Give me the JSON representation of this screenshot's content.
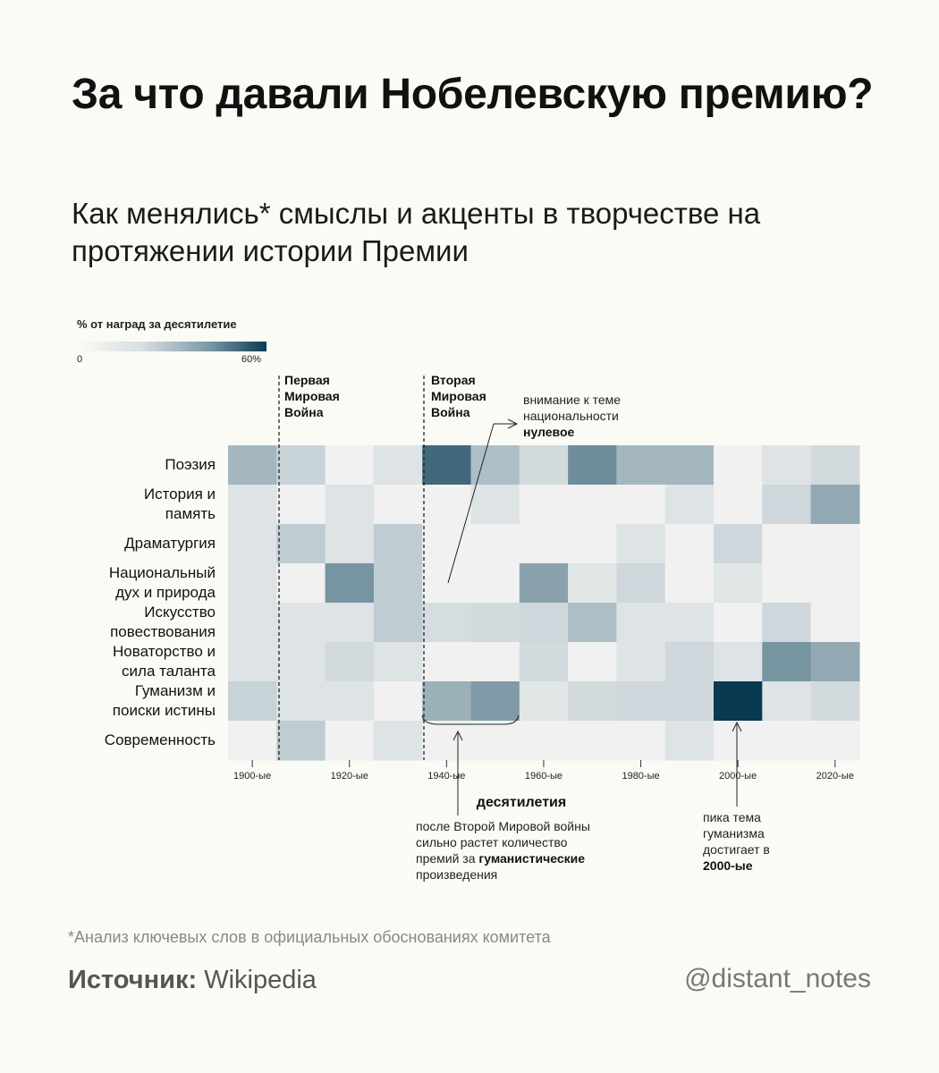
{
  "header": {
    "title": "За что давали Нобелевскую премию?",
    "subtitle": "Как менялись* смыслы и акценты в творчестве на протяжении истории Премии"
  },
  "legend": {
    "label": "% от наград за десятилетие",
    "min_label": "0",
    "max_label": "60%",
    "color_low": "#fbfbf6",
    "color_high": "#0a3a52"
  },
  "events": {
    "ww1": {
      "label": "Первая\nМировая\nВойна"
    },
    "ww2": {
      "label": "Вторая\nМировая\nВойна"
    }
  },
  "annotations": {
    "nationality": {
      "text": "внимание к теме национальности",
      "bold": "нулевое"
    },
    "humanism_growth": {
      "text": "после Второй Мировой войны сильно растет количество премий за",
      "bold": "гуманистические",
      "tail": "произведения"
    },
    "humanism_peak": {
      "text": "пика тема гуманизма достигает в",
      "bold": "2000-ые"
    }
  },
  "chart_data": {
    "type": "heatmap",
    "xlabel": "десятилетия",
    "x_tick_labels": [
      "1900-ые",
      "1920-ые",
      "1940-ые",
      "1960-ые",
      "1980-ые",
      "2000-ые",
      "2020-ые"
    ],
    "columns": [
      "1900s",
      "1910s",
      "1920s",
      "1930s",
      "1940s",
      "1950s",
      "1960s",
      "1970s",
      "1980s",
      "1990s",
      "2000s",
      "2010s",
      "2020s"
    ],
    "rows": [
      "Поэзия",
      "История и\nпамять",
      "Драматургия",
      "Национальный\nдух и природа",
      "Искусство\nповествования",
      "Новаторство и\nсила таланта",
      "Гуманизм и\nпоиски истины",
      "Современность"
    ],
    "value_range": [
      0,
      60
    ],
    "values": [
      [
        30,
        22,
        2,
        12,
        50,
        28,
        18,
        42,
        30,
        30,
        2,
        12,
        18
      ],
      [
        12,
        2,
        12,
        2,
        2,
        12,
        2,
        2,
        2,
        12,
        2,
        20,
        34
      ],
      [
        12,
        24,
        12,
        24,
        2,
        2,
        2,
        2,
        12,
        2,
        20,
        2,
        2
      ],
      [
        12,
        2,
        40,
        24,
        2,
        2,
        36,
        10,
        20,
        2,
        10,
        2,
        2
      ],
      [
        12,
        12,
        12,
        24,
        16,
        18,
        20,
        28,
        12,
        12,
        2,
        20,
        2
      ],
      [
        12,
        12,
        18,
        12,
        2,
        2,
        18,
        2,
        12,
        20,
        12,
        40,
        34
      ],
      [
        22,
        12,
        12,
        2,
        32,
        38,
        10,
        18,
        20,
        20,
        60,
        12,
        18
      ],
      [
        2,
        24,
        2,
        12,
        2,
        2,
        2,
        2,
        2,
        12,
        2,
        2,
        2
      ]
    ]
  },
  "footer": {
    "footnote": "*Анализ ключевых слов в официальных обоснованиях комитета",
    "source_label": "Источник:",
    "source_value": "Wikipedia",
    "handle": "@distant_notes"
  }
}
